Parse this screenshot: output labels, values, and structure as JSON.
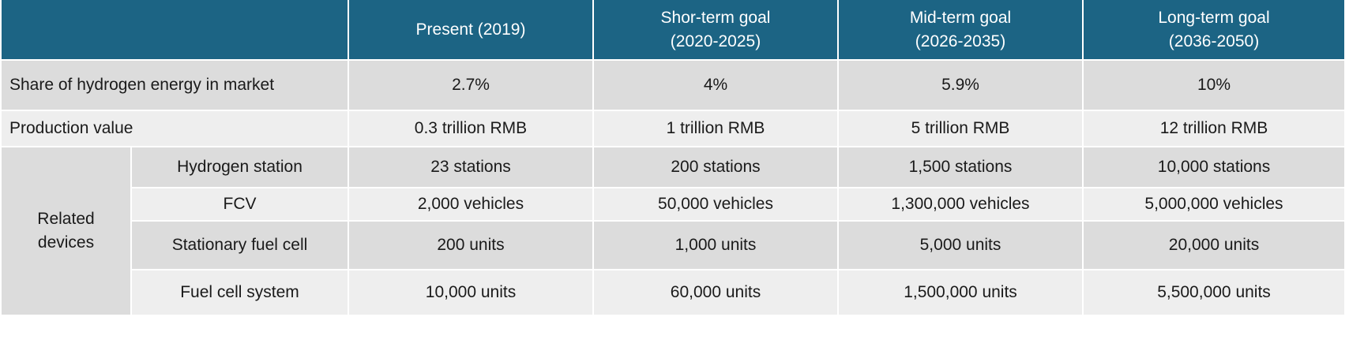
{
  "header": {
    "corner": "",
    "present": "Present (2019)",
    "short_line1": "Shor-term goal",
    "short_line2": "(2020-2025)",
    "mid_line1": "Mid-term goal",
    "mid_line2": "(2026-2035)",
    "long_line1": "Long-term goal",
    "long_line2": "(2036-2050)"
  },
  "rows": {
    "share": {
      "label": "Share of hydrogen energy in market",
      "present": "2.7%",
      "short": "4%",
      "mid": "5.9%",
      "long": "10%"
    },
    "production": {
      "label": "Production value",
      "present": "0.3 trillion RMB",
      "short": "1 trillion RMB",
      "mid": "5 trillion RMB",
      "long": "12 trillion RMB"
    },
    "related_line1": "Related",
    "related_line2": "devices",
    "station": {
      "label": "Hydrogen station",
      "present": "23 stations",
      "short": "200 stations",
      "mid": "1,500 stations",
      "long": "10,000 stations"
    },
    "fcv": {
      "label": "FCV",
      "present": "2,000 vehicles",
      "short": "50,000 vehicles",
      "mid": "1,300,000 vehicles",
      "long": "5,000,000 vehicles"
    },
    "stationary": {
      "label": "Stationary fuel cell",
      "present": "200 units",
      "short": "1,000 units",
      "mid": "5,000 units",
      "long": "20,000 units"
    },
    "system": {
      "label": "Fuel cell system",
      "present": "10,000 units",
      "short": "60,000 units",
      "mid": "1,500,000 units",
      "long": "5,500,000 units"
    }
  },
  "colors": {
    "header_bg": "#1c6484",
    "row_dark": "#dcdcdc",
    "row_light": "#eeeeee"
  }
}
